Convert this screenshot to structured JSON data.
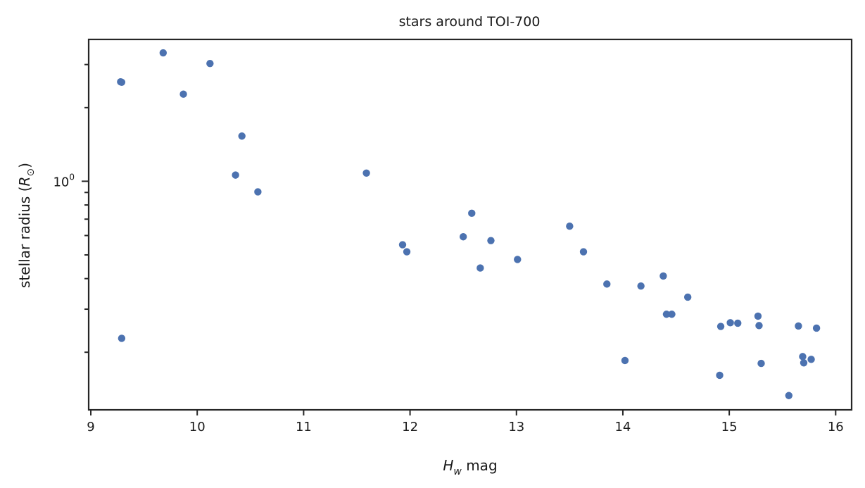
{
  "chart_data": {
    "type": "scatter",
    "title": "stars around TOI-700",
    "xlabel_main": "H",
    "xlabel_sub": "w",
    "xlabel_rest": " mag",
    "ylabel_main": "stellar radius (",
    "ylabel_sym": "R",
    "ylabel_sub": "⊙",
    "ylabel_end": ")",
    "xlim": [
      8.98,
      16.15
    ],
    "ylim": [
      0.1163,
      3.8
    ],
    "yscale": "log",
    "grid": false,
    "x_ticks": [
      9,
      10,
      11,
      12,
      13,
      14,
      15,
      16
    ],
    "y_major_tick": {
      "value": 1.0,
      "base": "10",
      "exponent": "0"
    },
    "y_minor_ticks": [
      0.2,
      0.3,
      0.4,
      0.5,
      0.6,
      0.7,
      0.8,
      0.9,
      2,
      3
    ],
    "marker_color": "#4c72b0",
    "points": [
      {
        "x": 9.28,
        "y": 2.55
      },
      {
        "x": 9.29,
        "y": 2.54
      },
      {
        "x": 9.29,
        "y": 0.228
      },
      {
        "x": 9.68,
        "y": 3.35
      },
      {
        "x": 9.87,
        "y": 2.27
      },
      {
        "x": 10.12,
        "y": 3.03
      },
      {
        "x": 10.36,
        "y": 1.06
      },
      {
        "x": 10.42,
        "y": 1.53
      },
      {
        "x": 10.57,
        "y": 0.905
      },
      {
        "x": 11.59,
        "y": 1.08
      },
      {
        "x": 11.93,
        "y": 0.55
      },
      {
        "x": 11.97,
        "y": 0.515
      },
      {
        "x": 12.5,
        "y": 0.593
      },
      {
        "x": 12.58,
        "y": 0.74
      },
      {
        "x": 12.66,
        "y": 0.442
      },
      {
        "x": 12.76,
        "y": 0.572
      },
      {
        "x": 13.01,
        "y": 0.479
      },
      {
        "x": 13.5,
        "y": 0.655
      },
      {
        "x": 13.63,
        "y": 0.515
      },
      {
        "x": 13.85,
        "y": 0.38
      },
      {
        "x": 14.02,
        "y": 0.185
      },
      {
        "x": 14.17,
        "y": 0.373
      },
      {
        "x": 14.38,
        "y": 0.41
      },
      {
        "x": 14.41,
        "y": 0.286
      },
      {
        "x": 14.46,
        "y": 0.286
      },
      {
        "x": 14.61,
        "y": 0.336
      },
      {
        "x": 14.91,
        "y": 0.161
      },
      {
        "x": 14.92,
        "y": 0.255
      },
      {
        "x": 15.01,
        "y": 0.264
      },
      {
        "x": 15.08,
        "y": 0.263
      },
      {
        "x": 15.27,
        "y": 0.281
      },
      {
        "x": 15.28,
        "y": 0.257
      },
      {
        "x": 15.3,
        "y": 0.18
      },
      {
        "x": 15.56,
        "y": 0.133
      },
      {
        "x": 15.65,
        "y": 0.256
      },
      {
        "x": 15.69,
        "y": 0.192
      },
      {
        "x": 15.7,
        "y": 0.181
      },
      {
        "x": 15.77,
        "y": 0.187
      },
      {
        "x": 15.82,
        "y": 0.251
      }
    ]
  }
}
